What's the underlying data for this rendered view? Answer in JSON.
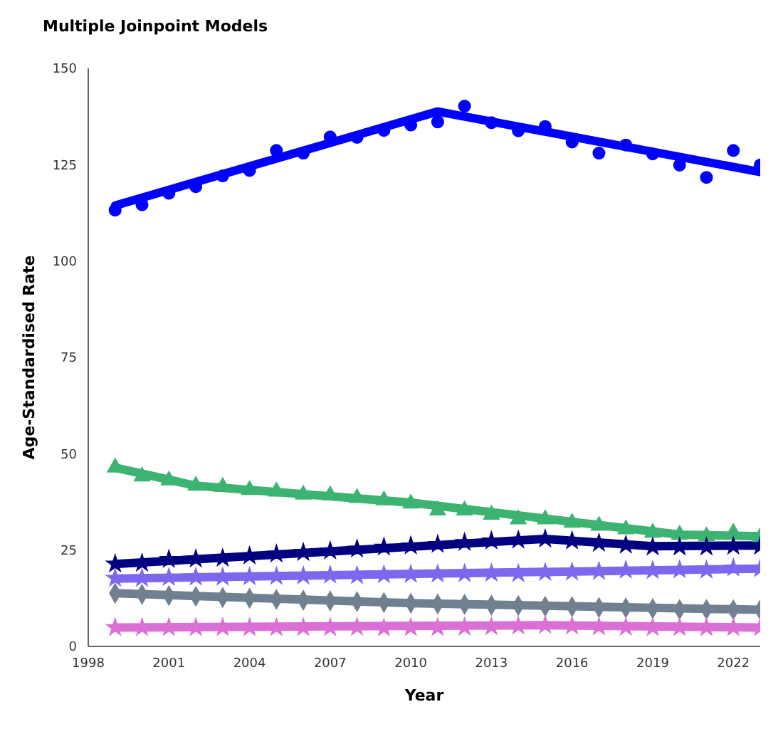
{
  "chart_data": {
    "type": "scatter",
    "title": "Multiple Joinpoint Models",
    "xlabel": "Year",
    "ylabel": "Age-Standardised Rate",
    "xlim": [
      1998,
      2023
    ],
    "xticks": [
      1998,
      2001,
      2004,
      2007,
      2010,
      2013,
      2016,
      2019,
      2022
    ],
    "ylim": [
      0,
      150
    ],
    "yticks": [
      0,
      25,
      50,
      75,
      100,
      125,
      150
    ],
    "x": [
      1999,
      2000,
      2001,
      2002,
      2003,
      2004,
      2005,
      2006,
      2007,
      2008,
      2009,
      2010,
      2011,
      2012,
      2013,
      2014,
      2015,
      2016,
      2017,
      2018,
      2019,
      2020,
      2021,
      2022,
      2023
    ],
    "series": [
      {
        "marker": "circle",
        "color": "#0000ff",
        "values": [
          113.2,
          114.6,
          117.6,
          119.3,
          122.1,
          123.5,
          128.7,
          128.0,
          132.2,
          132.1,
          133.9,
          135.3,
          136.1,
          140.2,
          135.9,
          133.8,
          134.9,
          130.9,
          128.0,
          130.1,
          127.8,
          124.9,
          121.7,
          128.7,
          124.9
        ]
      },
      {
        "type": "line",
        "marker": "none",
        "color": "#0000ff",
        "x": [
          1999,
          2011,
          2023
        ],
        "values": [
          114.4,
          138.8,
          123.1
        ]
      },
      {
        "marker": "triangle",
        "color": "#3cb371",
        "values": [
          46.4,
          44.1,
          43.1,
          41.7,
          41.4,
          40.6,
          40.2,
          39.4,
          39.2,
          38.5,
          37.9,
          37.1,
          35.3,
          35.3,
          34.2,
          33.0,
          33.0,
          32.1,
          31.3,
          30.4,
          29.5,
          29.0,
          28.6,
          29.5,
          28.4
        ]
      },
      {
        "type": "line",
        "marker": "none",
        "color": "#3cb371",
        "x": [
          1999,
          2002,
          2010,
          2020,
          2023
        ],
        "values": [
          46.4,
          41.7,
          37.3,
          29.0,
          28.6
        ]
      },
      {
        "marker": "star",
        "color": "#000080",
        "values": [
          21.4,
          21.6,
          22.6,
          22.7,
          22.9,
          23.5,
          24.0,
          24.4,
          24.8,
          25.3,
          25.8,
          26.1,
          26.5,
          27.0,
          27.4,
          27.6,
          27.9,
          27.4,
          26.8,
          26.3,
          25.8,
          25.8,
          25.8,
          26.0,
          26.0
        ]
      },
      {
        "type": "line",
        "marker": "none",
        "color": "#000080",
        "x": [
          1999,
          2015,
          2019,
          2023
        ],
        "values": [
          21.4,
          27.9,
          26.0,
          26.2
        ]
      },
      {
        "marker": "star",
        "color": "#7b68ee",
        "values": [
          17.7,
          17.7,
          17.9,
          18.0,
          18.0,
          18.1,
          18.2,
          18.3,
          18.5,
          18.4,
          18.6,
          18.7,
          18.8,
          18.9,
          19.0,
          18.9,
          19.2,
          19.3,
          19.5,
          19.8,
          19.7,
          19.9,
          19.8,
          20.4,
          20.2
        ]
      },
      {
        "type": "line",
        "marker": "none",
        "color": "#7b68ee",
        "x": [
          1999,
          2023
        ],
        "values": [
          17.6,
          20.2
        ]
      },
      {
        "marker": "diamond",
        "color": "#708090",
        "values": [
          13.8,
          13.5,
          13.2,
          13.0,
          12.7,
          12.5,
          12.2,
          12.0,
          11.8,
          11.6,
          11.4,
          11.2,
          11.0,
          10.9,
          10.7,
          10.6,
          10.4,
          10.3,
          10.1,
          10.0,
          9.8,
          9.6,
          9.6,
          9.5,
          9.5
        ]
      },
      {
        "type": "line",
        "marker": "none",
        "color": "#708090",
        "x": [
          1999,
          2010,
          2023
        ],
        "values": [
          13.8,
          11.2,
          9.5
        ]
      },
      {
        "marker": "star",
        "color": "#da70d6",
        "values": [
          4.9,
          4.9,
          4.9,
          4.9,
          4.9,
          4.9,
          4.9,
          4.9,
          4.9,
          5.0,
          4.8,
          4.9,
          4.9,
          5.0,
          5.1,
          5.3,
          5.5,
          5.3,
          5.1,
          5.0,
          4.9,
          4.9,
          4.9,
          4.9,
          4.9
        ]
      },
      {
        "type": "line",
        "marker": "none",
        "color": "#da70d6",
        "x": [
          1999,
          2015,
          2023
        ],
        "values": [
          4.9,
          5.5,
          4.9
        ]
      }
    ]
  }
}
